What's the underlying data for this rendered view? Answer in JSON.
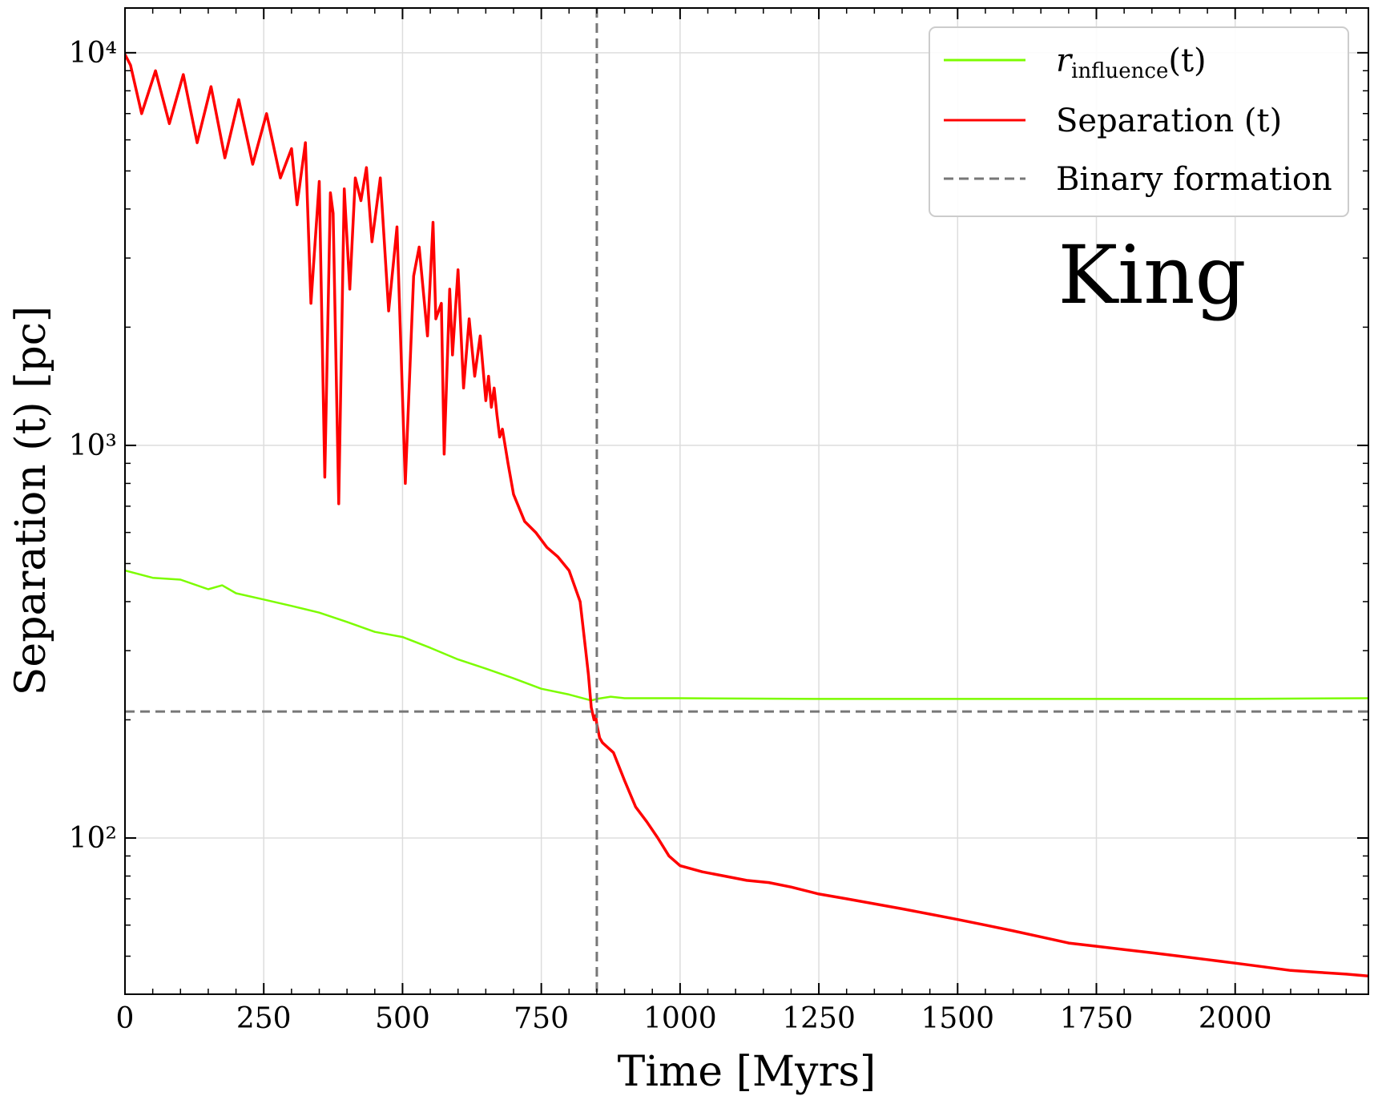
{
  "chart_data": {
    "type": "line",
    "title": "",
    "xlabel": "Time [Myrs]",
    "ylabel": "Separation (t) [pc]",
    "x_scale": "linear",
    "y_scale": "log",
    "xlim": [
      0,
      2240
    ],
    "ylim": [
      40,
      13000
    ],
    "x_ticks": [
      0,
      250,
      500,
      750,
      1000,
      1250,
      1500,
      1750,
      2000
    ],
    "x_tick_labels": [
      "0",
      "250",
      "500",
      "750",
      "1000",
      "1250",
      "1500",
      "1750",
      "2000"
    ],
    "y_ticks": [
      100,
      1000,
      10000
    ],
    "y_tick_labels": [
      "10²",
      "10³",
      "10⁴"
    ],
    "grid": true,
    "legend_position": "top-right",
    "annotation": "King",
    "series": [
      {
        "name": "r_influence(t)",
        "color": "#7cfc00",
        "style": "solid",
        "x": [
          0,
          50,
          100,
          150,
          175,
          200,
          250,
          300,
          350,
          400,
          450,
          500,
          550,
          600,
          650,
          700,
          750,
          800,
          840,
          850,
          875,
          900,
          1000,
          1250,
          1500,
          1750,
          2000,
          2240
        ],
        "y": [
          480,
          460,
          455,
          430,
          440,
          420,
          405,
          390,
          375,
          355,
          335,
          325,
          305,
          285,
          270,
          255,
          240,
          232,
          224,
          226,
          229,
          227,
          227,
          226,
          226,
          226,
          226,
          227
        ]
      },
      {
        "name": "Separation (t)",
        "color": "#ff0000",
        "style": "solid",
        "x": [
          0,
          10,
          30,
          55,
          80,
          105,
          130,
          155,
          180,
          205,
          230,
          255,
          280,
          300,
          310,
          325,
          335,
          350,
          360,
          370,
          375,
          385,
          395,
          405,
          415,
          425,
          435,
          445,
          460,
          475,
          490,
          505,
          520,
          530,
          545,
          555,
          560,
          570,
          575,
          585,
          590,
          600,
          610,
          620,
          630,
          640,
          650,
          655,
          660,
          665,
          670,
          675,
          680,
          690,
          700,
          720,
          740,
          760,
          780,
          800,
          820,
          830,
          835,
          840,
          845,
          848,
          850,
          855,
          860,
          880,
          900,
          920,
          940,
          960,
          980,
          1000,
          1040,
          1080,
          1120,
          1160,
          1200,
          1250,
          1300,
          1350,
          1400,
          1450,
          1500,
          1550,
          1600,
          1650,
          1700,
          1750,
          1800,
          1850,
          1900,
          1950,
          2000,
          2050,
          2100,
          2150,
          2200,
          2240
        ],
        "y": [
          9900,
          9300,
          7000,
          9000,
          6600,
          8800,
          5900,
          8200,
          5400,
          7600,
          5200,
          7000,
          4800,
          5700,
          4100,
          5900,
          2300,
          4700,
          830,
          4400,
          3900,
          710,
          4500,
          2500,
          4800,
          4200,
          5100,
          3300,
          4800,
          2200,
          3600,
          800,
          2700,
          3200,
          1900,
          3700,
          2100,
          2300,
          950,
          2500,
          1700,
          2800,
          1400,
          2100,
          1500,
          1900,
          1300,
          1500,
          1250,
          1400,
          1200,
          1050,
          1100,
          900,
          750,
          640,
          600,
          550,
          520,
          480,
          400,
          300,
          260,
          215,
          200,
          205,
          195,
          180,
          175,
          165,
          140,
          120,
          110,
          100,
          90,
          85,
          82,
          80,
          78,
          77,
          75,
          72,
          70,
          68,
          66,
          64,
          62,
          60,
          58,
          56,
          54,
          53,
          52,
          51,
          50,
          49,
          48,
          47,
          46,
          45.5,
          45,
          44.5
        ]
      },
      {
        "name": "Binary formation",
        "color": "#777777",
        "style": "dashed",
        "x_vertical": 850,
        "y_horizontal": 210
      }
    ]
  },
  "legend": {
    "entries": [
      {
        "label": "r_influence(t)",
        "main": "r",
        "sub": "influence",
        "suffix": "(t)",
        "color": "#7cfc00",
        "style": "solid"
      },
      {
        "label": "Separation (t)",
        "color": "#ff0000",
        "style": "solid"
      },
      {
        "label": "Binary formation",
        "color": "#777777",
        "style": "dashed"
      }
    ]
  }
}
